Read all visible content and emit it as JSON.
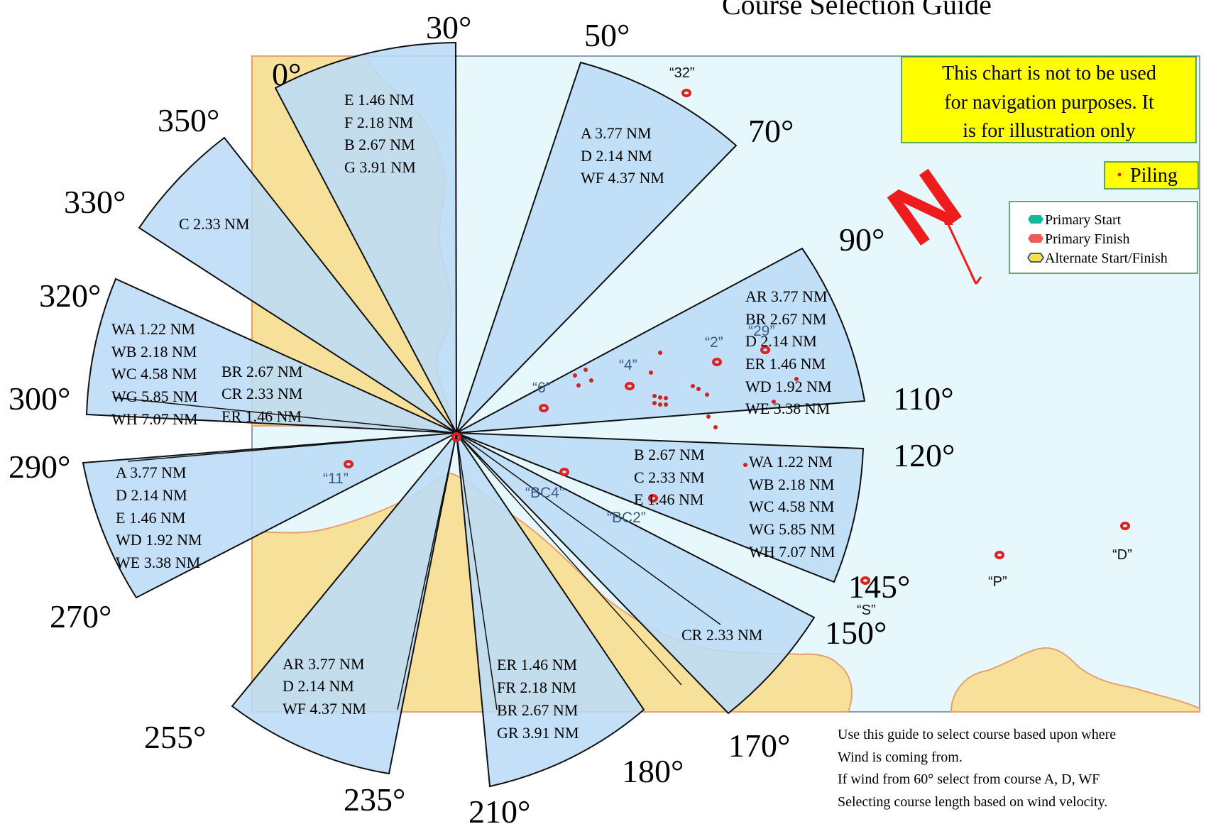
{
  "title": "Course Selection Guide",
  "disclaimer": [
    "This chart is not to be used",
    "for navigation purposes. It",
    "is for illustration only"
  ],
  "piling_label": "Piling",
  "legend": [
    {
      "label": "Primary Start",
      "color": "#13b79a"
    },
    {
      "label": "Primary Finish",
      "color": "#ee5a5a"
    },
    {
      "label": "Alternate Start/Finish",
      "color": "#f2e24a"
    }
  ],
  "north_label": "N",
  "degrees": [
    "0°",
    "30°",
    "50°",
    "70°",
    "90°",
    "110°",
    "120°",
    "145°",
    "150°",
    "170°",
    "180°",
    "210°",
    "235°",
    "255°",
    "270°",
    "290°",
    "300°",
    "320°",
    "330°",
    "350°"
  ],
  "courses": {
    "w0_30": [
      "E  1.46 NM",
      "F  2.18 NM",
      "B  2.67 NM",
      "G  3.91 NM"
    ],
    "w50_70": [
      "A     3.77 NM",
      "D     2.14 NM",
      "WF  4.37 NM"
    ],
    "w90_110": [
      "AR  3.77 NM",
      "BR  2.67 NM",
      "D     2.14 NM",
      "ER  1.46 NM",
      "WD  1.92 NM",
      "WE  3.38 NM"
    ],
    "w120_145a": [
      "B     2.67 NM",
      "C     2.33 NM",
      "E     1.46 NM"
    ],
    "w120_145b": [
      "WA  1.22 NM",
      "WB  2.18 NM",
      "WC  4.58 NM",
      "WG  5.85 NM",
      "WH  7.07 NM"
    ],
    "w150_170": [
      "CR  2.33 NM"
    ],
    "w180_210": [
      "ER  1.46 NM",
      "FR  2.18 NM",
      "BR  2.67 NM",
      "GR  3.91 NM"
    ],
    "w235_255": [
      "AR  3.77 NM",
      "D     2.14 NM",
      "WF  4.37 NM"
    ],
    "w270_290": [
      "A     3.77 NM",
      "D     2.14 NM",
      "E     1.46 NM",
      "WD  1.92 NM",
      "WE  3.38 NM"
    ],
    "w300_320a": [
      "WA  1.22 NM",
      "WB  2.18 NM",
      "WC  4.58 NM",
      "WG  5.85 NM",
      "WH  7.07 NM"
    ],
    "w300_320b": [
      "BR  2.67 NM",
      "CR  2.33 NM",
      "ER  1.46 NM"
    ],
    "w330_350": [
      "C  2.33 NM"
    ]
  },
  "marks": [
    "“32”",
    "“29”",
    "“2”",
    "“4”",
    "“6”",
    "“11”",
    "“BC4”",
    "“BC2”",
    "“S”",
    "“P”",
    "“D”"
  ],
  "instructions": [
    "Use this guide to select course based upon where",
    "Wind is coming from.",
    "If wind from 60°   select from course A, D, WF",
    "Selecting course length based on wind velocity."
  ]
}
